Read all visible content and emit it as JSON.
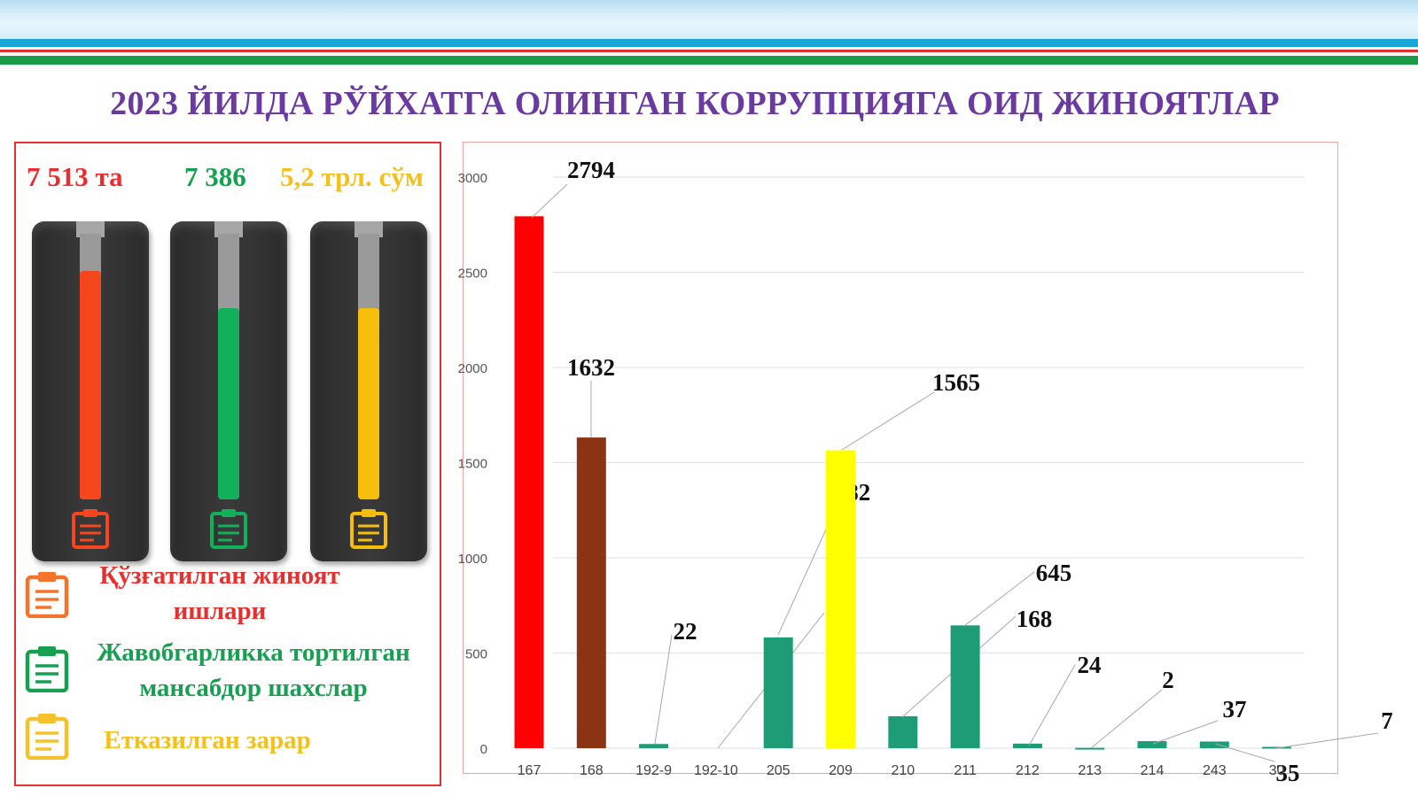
{
  "page": {
    "title": "2023 ЙИЛДА РЎЙХАТГА ОЛИНГАН КОРРУПЦИЯГА ОИД ЖИНОЯТЛАР"
  },
  "stats": {
    "cases": "7 513 та",
    "persons": "7 386",
    "damage": "5,2 трл. сўм"
  },
  "gauges": [
    {
      "color": "#f5461e",
      "level": 0.86
    },
    {
      "color": "#12b05a",
      "level": 0.72
    },
    {
      "color": "#f6be0a",
      "level": 0.72
    }
  ],
  "legend": {
    "cases_line1": "Қўзғатилган жиноят",
    "cases_line2": "ишлари",
    "persons_line1": "Жавобгарликка тортилган",
    "persons_line2": "мансабдор шахслар",
    "damage": "Етказилган зарар"
  },
  "colors": {
    "red": "#e53030",
    "green": "#17a052",
    "yellow": "#f3c11a",
    "title": "#6b3aa0"
  },
  "chart_data": {
    "type": "bar",
    "title": "",
    "xlabel": "",
    "ylabel": "",
    "ylim": [
      0,
      3000
    ],
    "yticks": [
      0,
      500,
      1000,
      1500,
      2000,
      2500,
      3000
    ],
    "grid": true,
    "categories": [
      "167",
      "168",
      "192-9",
      "192-10",
      "205",
      "209",
      "210",
      "211",
      "212",
      "213",
      "214",
      "243",
      "30"
    ],
    "values": [
      2794,
      1632,
      22,
      0,
      582,
      1565,
      168,
      645,
      24,
      2,
      37,
      35,
      7
    ],
    "bar_colors": [
      "#ff0000",
      "#8b3414",
      "#1e9c76",
      "#1e9c76",
      "#1e9c76",
      "#ffff00",
      "#1e9c76",
      "#1e9c76",
      "#1e9c76",
      "#1e9c76",
      "#1e9c76",
      "#1e9c76",
      "#1e9c76"
    ],
    "data_labels": [
      "2794",
      "1632",
      "22",
      "0",
      "582",
      "1565",
      "168",
      "645",
      "24",
      "2",
      "37",
      "35",
      "7"
    ]
  }
}
